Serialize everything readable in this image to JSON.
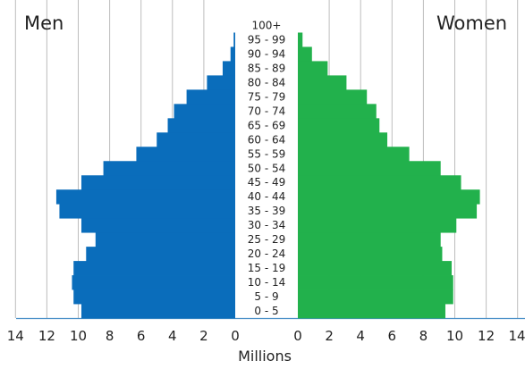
{
  "chart_data": {
    "type": "bar",
    "orientation": "horizontal",
    "title": "",
    "xlabel": "Millions",
    "xlim": [
      0,
      14
    ],
    "grid": true,
    "left_label": "Men",
    "right_label": "Women",
    "categories": [
      "0 - 5",
      "5 - 9",
      "10 - 14",
      "15 - 19",
      "20 - 24",
      "25 - 29",
      "30 - 34",
      "35 - 39",
      "40 - 44",
      "45 - 49",
      "50 - 54",
      "55 - 59",
      "60 - 64",
      "65 - 69",
      "70 - 74",
      "75 - 79",
      "80 - 84",
      "85 - 89",
      "90 - 94",
      "95 - 99",
      "100+"
    ],
    "series": [
      {
        "name": "Men",
        "color": "#0a6dbb",
        "values": [
          9.8,
          10.3,
          10.4,
          10.3,
          9.5,
          8.9,
          9.8,
          11.2,
          11.4,
          9.8,
          8.4,
          6.3,
          5.0,
          4.3,
          3.9,
          3.1,
          1.8,
          0.8,
          0.3,
          0.1,
          0.0
        ]
      },
      {
        "name": "Women",
        "color": "#22b14c",
        "values": [
          9.4,
          9.9,
          9.9,
          9.8,
          9.2,
          9.1,
          10.1,
          11.4,
          11.6,
          10.4,
          9.1,
          7.1,
          5.7,
          5.2,
          5.0,
          4.4,
          3.1,
          1.9,
          0.9,
          0.3,
          0.0
        ]
      }
    ],
    "x_ticks_left": [
      "14",
      "12",
      "10",
      "8",
      "6",
      "4",
      "2",
      "0"
    ],
    "x_ticks_right": [
      "0",
      "2",
      "4",
      "6",
      "8",
      "10",
      "12",
      "14"
    ]
  }
}
